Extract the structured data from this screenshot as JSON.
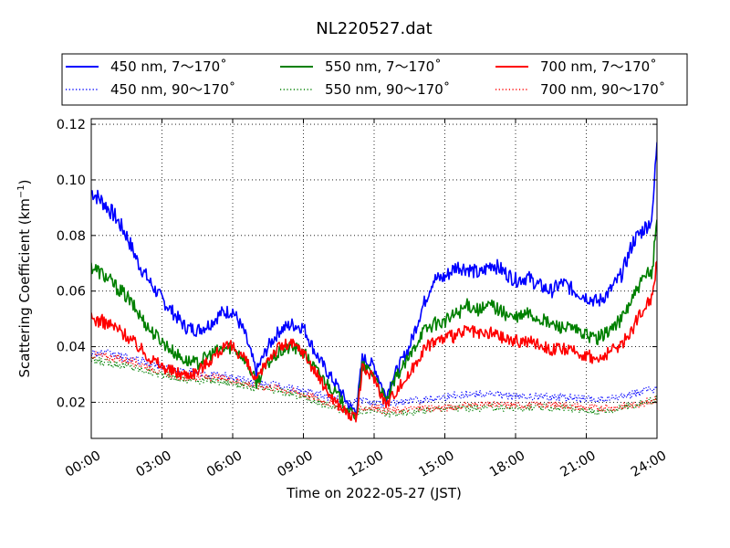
{
  "chart_data": {
    "type": "line",
    "title": "NL220527.dat",
    "xlabel": "Time on 2022-05-27 (JST)",
    "ylabel_main": "Scattering Coefficient (km",
    "ylabel_sup": "−1",
    "ylabel_tail": ")",
    "xlim": [
      0,
      24
    ],
    "ylim": [
      0.007,
      0.122
    ],
    "x_ticks": [
      0,
      3,
      6,
      9,
      12,
      15,
      18,
      21,
      24
    ],
    "x_tick_labels": [
      "00:00",
      "03:00",
      "06:00",
      "09:00",
      "12:00",
      "15:00",
      "18:00",
      "21:00",
      "24:00"
    ],
    "y_ticks": [
      0.02,
      0.04,
      0.06,
      0.08,
      0.1,
      0.12
    ],
    "y_tick_labels": [
      "0.02",
      "0.04",
      "0.06",
      "0.08",
      "0.10",
      "0.12"
    ],
    "grid": true,
    "legend_placement": "top (above plot)",
    "series": [
      {
        "name": "450 nm, 7～170˚",
        "color": "#0000ff",
        "style": "solid",
        "x": [
          0,
          0.5,
          1,
          1.5,
          2,
          2.5,
          3,
          3.5,
          4,
          4.5,
          5,
          5.5,
          6,
          6.5,
          7,
          7.5,
          8,
          8.5,
          9,
          9.5,
          10,
          10.5,
          11,
          11.25,
          11.5,
          12,
          12.5,
          12.75,
          13,
          13.5,
          14,
          14.5,
          15,
          15.5,
          16,
          16.5,
          17,
          17.5,
          18,
          18.5,
          19,
          19.5,
          20,
          20.5,
          21,
          21.5,
          22,
          22.5,
          23,
          23.5,
          23.8,
          24
        ],
        "y": [
          0.096,
          0.092,
          0.087,
          0.08,
          0.07,
          0.063,
          0.057,
          0.052,
          0.047,
          0.046,
          0.048,
          0.052,
          0.053,
          0.045,
          0.031,
          0.04,
          0.046,
          0.048,
          0.047,
          0.038,
          0.031,
          0.025,
          0.018,
          0.017,
          0.036,
          0.033,
          0.022,
          0.028,
          0.032,
          0.04,
          0.053,
          0.064,
          0.065,
          0.069,
          0.068,
          0.066,
          0.07,
          0.067,
          0.064,
          0.065,
          0.062,
          0.06,
          0.063,
          0.06,
          0.058,
          0.056,
          0.06,
          0.066,
          0.078,
          0.083,
          0.086,
          0.115
        ]
      },
      {
        "name": "550 nm, 7～170˚",
        "color": "#008000",
        "style": "solid",
        "x": [
          0,
          0.5,
          1,
          1.5,
          2,
          2.5,
          3,
          3.5,
          4,
          4.5,
          5,
          5.5,
          6,
          6.5,
          7,
          7.5,
          8,
          8.5,
          9,
          9.5,
          10,
          10.5,
          11,
          11.25,
          11.5,
          12,
          12.5,
          12.75,
          13,
          13.5,
          14,
          14.5,
          15,
          15.5,
          16,
          16.5,
          17,
          17.5,
          18,
          18.5,
          19,
          19.5,
          20,
          20.5,
          21,
          21.5,
          22,
          22.5,
          23,
          23.5,
          23.8,
          24
        ],
        "y": [
          0.069,
          0.066,
          0.062,
          0.058,
          0.052,
          0.046,
          0.042,
          0.038,
          0.035,
          0.034,
          0.037,
          0.039,
          0.04,
          0.036,
          0.027,
          0.034,
          0.038,
          0.04,
          0.038,
          0.032,
          0.027,
          0.022,
          0.016,
          0.015,
          0.033,
          0.03,
          0.02,
          0.025,
          0.03,
          0.036,
          0.045,
          0.048,
          0.049,
          0.052,
          0.055,
          0.053,
          0.055,
          0.052,
          0.05,
          0.052,
          0.05,
          0.048,
          0.047,
          0.046,
          0.044,
          0.043,
          0.046,
          0.05,
          0.058,
          0.065,
          0.067,
          0.087
        ]
      },
      {
        "name": "700 nm, 7～170˚",
        "color": "#ff0000",
        "style": "solid",
        "x": [
          0,
          0.5,
          1,
          1.5,
          2,
          2.5,
          3,
          3.5,
          4,
          4.5,
          5,
          5.5,
          6,
          6.5,
          7,
          7.5,
          8,
          8.5,
          9,
          9.5,
          10,
          10.5,
          11,
          11.25,
          11.5,
          12,
          12.5,
          12.75,
          13,
          13.5,
          14,
          14.5,
          15,
          15.5,
          16,
          16.5,
          17,
          17.5,
          18,
          18.5,
          19,
          19.5,
          20,
          20.5,
          21,
          21.5,
          22,
          22.5,
          23,
          23.5,
          23.8,
          24
        ],
        "y": [
          0.05,
          0.049,
          0.047,
          0.044,
          0.04,
          0.036,
          0.033,
          0.031,
          0.03,
          0.031,
          0.035,
          0.039,
          0.04,
          0.036,
          0.027,
          0.036,
          0.04,
          0.041,
          0.038,
          0.031,
          0.024,
          0.019,
          0.015,
          0.014,
          0.032,
          0.029,
          0.019,
          0.022,
          0.025,
          0.03,
          0.038,
          0.042,
          0.043,
          0.044,
          0.046,
          0.044,
          0.045,
          0.043,
          0.042,
          0.042,
          0.041,
          0.039,
          0.039,
          0.038,
          0.037,
          0.035,
          0.038,
          0.041,
          0.047,
          0.055,
          0.058,
          0.072
        ]
      },
      {
        "name": "450 nm, 90～170˚",
        "color": "#0000ff",
        "style": "dotted",
        "x": [
          0,
          1,
          2,
          3,
          4,
          5,
          6,
          7,
          8,
          9,
          10,
          11,
          11.5,
          12,
          12.5,
          13,
          14,
          15,
          16,
          17,
          18,
          19,
          20,
          21,
          22,
          23,
          24
        ],
        "y": [
          0.038,
          0.037,
          0.035,
          0.033,
          0.031,
          0.03,
          0.029,
          0.027,
          0.026,
          0.024,
          0.022,
          0.02,
          0.021,
          0.02,
          0.019,
          0.02,
          0.021,
          0.022,
          0.023,
          0.023,
          0.022,
          0.022,
          0.022,
          0.021,
          0.021,
          0.023,
          0.025
        ]
      },
      {
        "name": "550 nm, 90～170˚",
        "color": "#008000",
        "style": "dotted",
        "x": [
          0,
          1,
          2,
          3,
          4,
          5,
          6,
          7,
          8,
          9,
          10,
          11,
          11.5,
          12,
          12.5,
          13,
          14,
          15,
          16,
          17,
          18,
          19,
          20,
          21,
          22,
          23,
          24
        ],
        "y": [
          0.035,
          0.034,
          0.032,
          0.03,
          0.028,
          0.028,
          0.027,
          0.025,
          0.024,
          0.022,
          0.019,
          0.016,
          0.017,
          0.017,
          0.016,
          0.016,
          0.017,
          0.018,
          0.018,
          0.018,
          0.018,
          0.018,
          0.018,
          0.017,
          0.017,
          0.019,
          0.021
        ]
      },
      {
        "name": "700 nm, 90～170˚",
        "color": "#ff0000",
        "style": "dotted",
        "x": [
          0,
          1,
          2,
          3,
          4,
          5,
          6,
          7,
          8,
          9,
          10,
          11,
          11.5,
          12,
          12.5,
          13,
          14,
          15,
          16,
          17,
          18,
          19,
          20,
          21,
          22,
          23,
          24
        ],
        "y": [
          0.037,
          0.036,
          0.034,
          0.031,
          0.029,
          0.029,
          0.028,
          0.026,
          0.025,
          0.023,
          0.02,
          0.017,
          0.018,
          0.018,
          0.017,
          0.017,
          0.018,
          0.018,
          0.019,
          0.019,
          0.019,
          0.019,
          0.019,
          0.018,
          0.018,
          0.019,
          0.021
        ]
      }
    ]
  }
}
